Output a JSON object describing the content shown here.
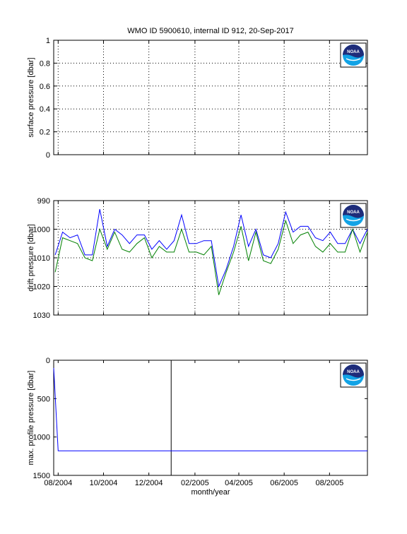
{
  "title": "WMO ID 5900610, internal ID 912, 20-Sep-2017",
  "xlabel": "month/year",
  "x_ticks": [
    "08/2004",
    "10/2004",
    "12/2004",
    "02/2005",
    "04/2005",
    "06/2005",
    "08/2005"
  ],
  "logo": {
    "name": "NOAA logo",
    "text": "NOAA",
    "colors": [
      "#1e2c7a",
      "#12a3e6",
      "#ffffff"
    ]
  },
  "colors": {
    "blue": "#0000ff",
    "green": "#008000",
    "black": "#000000"
  },
  "chart_data": [
    {
      "type": "line",
      "ylabel": "surface pressure [dbar]",
      "ylim": [
        0,
        1
      ],
      "y_ticks": [
        "0",
        "0.2",
        "0.4",
        "0.6",
        "0.8",
        "1"
      ],
      "x_range": [
        "2004-07-26",
        "2005-09-21"
      ],
      "grid": true,
      "series": []
    },
    {
      "type": "line",
      "ylabel": "drift pressure [dbar]",
      "ylim": [
        990,
        1030
      ],
      "y_reversed": true,
      "y_ticks": [
        "990",
        "1000",
        "1010",
        "1020",
        "1030"
      ],
      "x_range": [
        "2004-07-26",
        "2005-09-21"
      ],
      "grid": true,
      "series": [
        {
          "color": "#0000ff",
          "x": [
            "2004-07-28",
            "2004-08-07",
            "2004-08-17",
            "2004-08-27",
            "2004-09-06",
            "2004-09-16",
            "2004-09-26",
            "2004-10-06",
            "2004-10-16",
            "2004-10-26",
            "2004-11-05",
            "2004-11-15",
            "2004-11-25",
            "2004-12-05",
            "2004-12-15",
            "2004-12-25",
            "2005-01-04",
            "2005-01-14",
            "2005-01-24",
            "2005-02-03",
            "2005-02-13",
            "2005-02-23",
            "2005-03-05",
            "2005-03-15",
            "2005-03-25",
            "2005-04-04",
            "2005-04-14",
            "2005-04-24",
            "2005-05-04",
            "2005-05-14",
            "2005-05-24",
            "2005-06-03",
            "2005-06-13",
            "2005-06-23",
            "2005-07-03",
            "2005-07-13",
            "2005-07-23",
            "2005-08-02",
            "2005-08-12",
            "2005-08-22",
            "2005-09-01",
            "2005-09-11",
            "2005-09-21"
          ],
          "values": [
            1009,
            1001,
            1003,
            1002,
            1009,
            1009,
            993,
            1006,
            1000,
            1002,
            1005,
            1002,
            1002,
            1007,
            1004,
            1007,
            1004,
            995,
            1005,
            1005,
            1004,
            1004,
            1020,
            1014,
            1006,
            995,
            1006,
            1000,
            1009,
            1010,
            1005,
            994,
            1001,
            999,
            999,
            1003,
            1004,
            1001,
            1005,
            1005,
            1000,
            1005,
            1000
          ]
        },
        {
          "color": "#008000",
          "x": [
            "2004-07-28",
            "2004-08-07",
            "2004-08-17",
            "2004-08-27",
            "2004-09-06",
            "2004-09-16",
            "2004-09-26",
            "2004-10-06",
            "2004-10-16",
            "2004-10-26",
            "2004-11-05",
            "2004-11-15",
            "2004-11-25",
            "2004-12-05",
            "2004-12-15",
            "2004-12-25",
            "2005-01-04",
            "2005-01-14",
            "2005-01-24",
            "2005-02-03",
            "2005-02-13",
            "2005-02-23",
            "2005-03-05",
            "2005-03-15",
            "2005-03-25",
            "2005-04-04",
            "2005-04-14",
            "2005-04-24",
            "2005-05-04",
            "2005-05-14",
            "2005-05-24",
            "2005-06-03",
            "2005-06-13",
            "2005-06-23",
            "2005-07-03",
            "2005-07-13",
            "2005-07-23",
            "2005-08-02",
            "2005-08-12",
            "2005-08-22",
            "2005-09-01",
            "2005-09-11",
            "2005-09-21"
          ],
          "values": [
            1015,
            1003,
            1004,
            1005,
            1010,
            1011,
            1000,
            1007,
            1001,
            1007,
            1008,
            1005,
            1003,
            1010,
            1006,
            1008,
            1008,
            1000,
            1008,
            1008,
            1009,
            1006,
            1023,
            1015,
            1008,
            999,
            1011,
            1001,
            1011,
            1012,
            1007,
            997,
            1005,
            1002,
            1001,
            1006,
            1008,
            1005,
            1008,
            1008,
            1000,
            1008,
            1001
          ]
        }
      ]
    },
    {
      "type": "line",
      "ylabel": "max. profile pressure [dbar]",
      "ylim": [
        0,
        1500
      ],
      "y_reversed": true,
      "y_ticks": [
        "0",
        "500",
        "1000",
        "1500"
      ],
      "x_range": [
        "2004-07-26",
        "2005-09-21"
      ],
      "grid": false,
      "vertical_marker": "2004-12-31",
      "series": [
        {
          "color": "#0000ff",
          "x": [
            "2004-07-26",
            "2004-08-01",
            "2005-09-21"
          ],
          "values": [
            100,
            1180,
            1180
          ]
        }
      ]
    }
  ]
}
